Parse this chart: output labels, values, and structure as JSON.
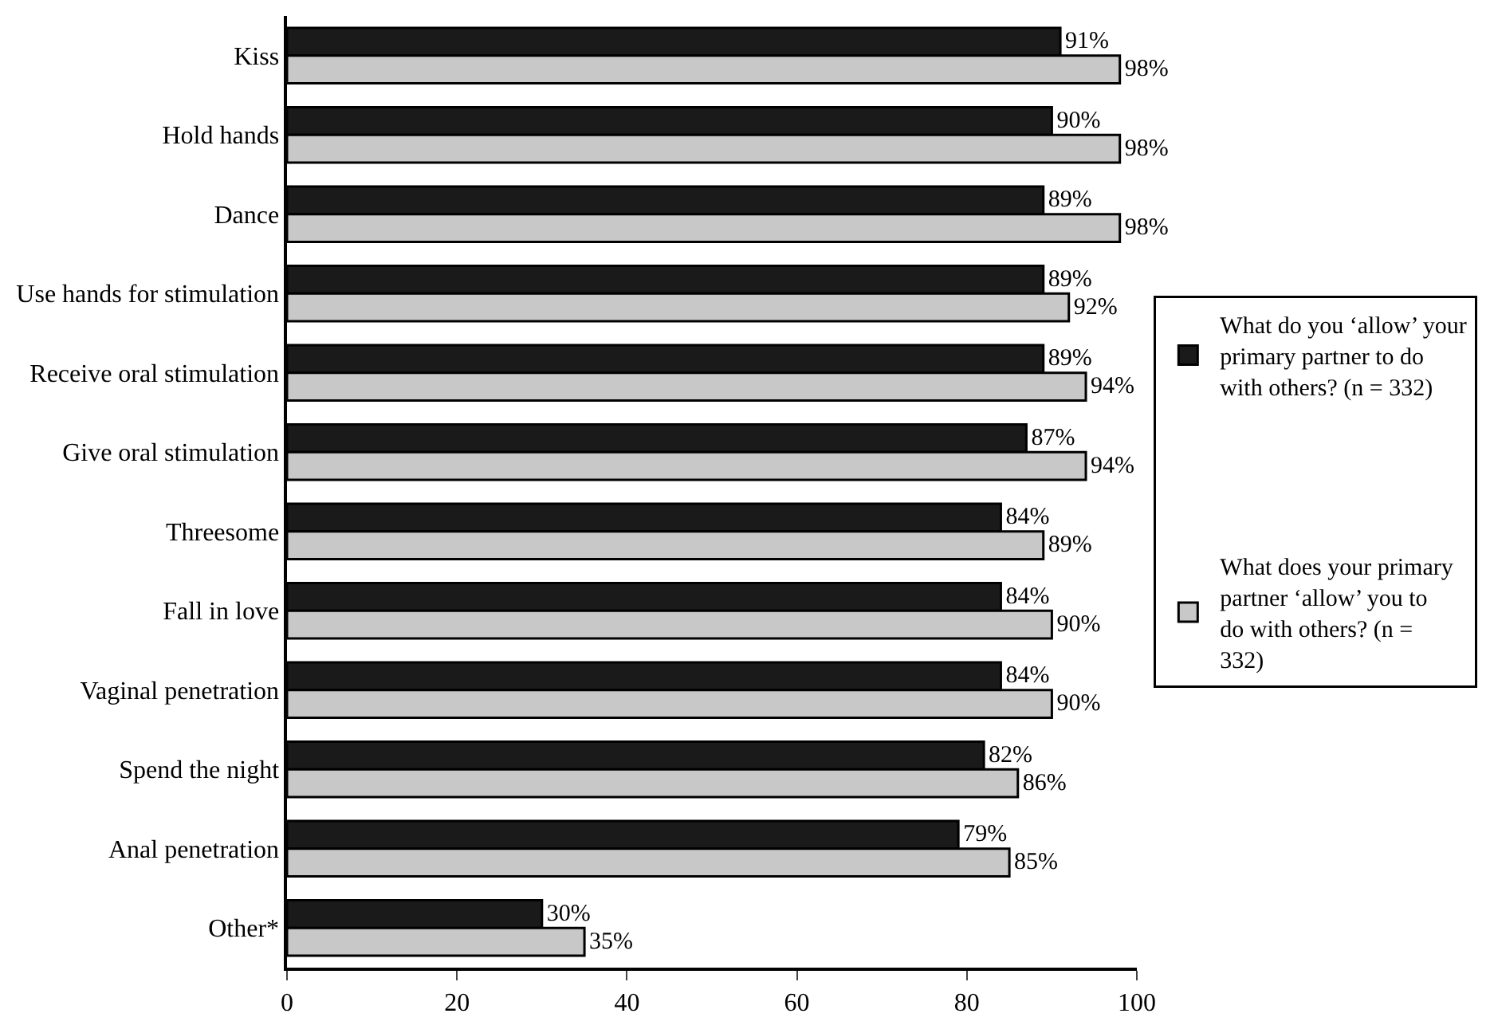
{
  "chart_data": {
    "type": "bar",
    "orientation": "horizontal",
    "categories": [
      "Kiss",
      "Hold hands",
      "Dance",
      "Use hands for stimulation",
      "Receive oral stimulation",
      "Give oral stimulation",
      "Threesome",
      "Fall in love",
      "Vaginal penetration",
      "Spend the night",
      "Anal penetration",
      "Other*"
    ],
    "series": [
      {
        "name": "What do you ‘allow’ your primary partner to do with others? (n = 332)",
        "color": "#1a1a1a",
        "values": [
          91,
          90,
          89,
          89,
          89,
          87,
          84,
          84,
          84,
          82,
          79,
          30
        ],
        "value_labels": [
          "91%",
          "90%",
          "89%",
          "89%",
          "89%",
          "87%",
          "84%",
          "84%",
          "84%",
          "82%",
          "79%",
          "30%"
        ]
      },
      {
        "name": "What does your primary partner ‘allow’ you to do with others? (n = 332)",
        "color": "#c8c8c8",
        "values": [
          98,
          98,
          98,
          92,
          94,
          94,
          89,
          90,
          90,
          86,
          85,
          35
        ],
        "value_labels": [
          "98%",
          "98%",
          "98%",
          "92%",
          "94%",
          "94%",
          "89%",
          "90%",
          "90%",
          "86%",
          "85%",
          "35%"
        ]
      }
    ],
    "xlim": [
      0,
      100
    ],
    "xticks": [
      0,
      20,
      40,
      60,
      80,
      100
    ],
    "legend": "right"
  }
}
